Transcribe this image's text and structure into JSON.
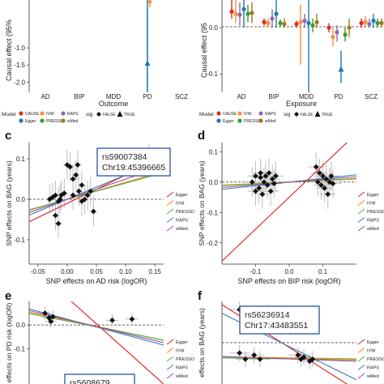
{
  "chart_data": [
    {
      "panel": "a",
      "type": "scatter",
      "ylabel": "Causal effect (95%",
      "xlabel": "Outcome",
      "categories": [
        "AD",
        "BIP",
        "MDD",
        "PD",
        "SCZ"
      ],
      "y_ticks": [
        "-1.0",
        "-1.5",
        "-2.0"
      ],
      "ylim": [
        -2.3,
        0.4
      ],
      "legend": {
        "model_title": "Model",
        "models": [
          "CAUSE",
          "IVW",
          "RAPS",
          "Egger",
          "PRESSO",
          "wMed"
        ],
        "sig_title": "sig",
        "sig_values": [
          "FALSE",
          "TRUE"
        ]
      },
      "points": [
        {
          "category": "PD",
          "model": "Egger",
          "y": -1.45,
          "lo": -2.3,
          "hi": 0.4,
          "sig": "TRUE"
        },
        {
          "category": "PD",
          "model": "IVW",
          "y": 0.35,
          "lo": 0.2,
          "hi": 0.4,
          "sig": "FALSE"
        }
      ]
    },
    {
      "panel": "b",
      "type": "scatter",
      "ylabel": "Causal effect (95",
      "xlabel": "Exposure",
      "categories": [
        "AD",
        "BIP",
        "MDD",
        "PD",
        "SCZ"
      ],
      "y_ticks": [
        "0.0",
        "-0.1"
      ],
      "ylim": [
        -0.14,
        0.06
      ],
      "legend": {
        "model_title": "Model",
        "models": [
          "CAUSE",
          "IVW",
          "RAPS",
          "Egger",
          "PRESSO",
          "wMed"
        ],
        "sig_title": "sig",
        "sig_values": [
          "FALSE",
          "TRUE"
        ]
      }
    },
    {
      "panel": "c",
      "type": "scatter",
      "xlabel": "SNP effects on AD risk (logOR)",
      "ylabel": "SNP effects on BAG (years)",
      "x_ticks": [
        "-0.05",
        "0.00",
        "0.05",
        "0.10",
        "0.15"
      ],
      "y_ticks": [
        "0.1",
        "0.0",
        "-0.1"
      ],
      "xlim": [
        -0.065,
        0.165
      ],
      "ylim": [
        -0.16,
        0.14
      ],
      "annotation": [
        "rs59007384",
        "Chr19:45396665"
      ],
      "legend": [
        "Egger",
        "IVW",
        "PRESSO",
        "RAPS",
        "wMed"
      ],
      "points": [
        {
          "x": -0.03,
          "y": 0.0
        },
        {
          "x": -0.025,
          "y": 0.005
        },
        {
          "x": -0.02,
          "y": 0.01
        },
        {
          "x": -0.015,
          "y": -0.005
        },
        {
          "x": -0.02,
          "y": -0.04
        },
        {
          "x": -0.015,
          "y": -0.06
        },
        {
          "x": -0.01,
          "y": 0.01
        },
        {
          "x": -0.005,
          "y": 0.015
        },
        {
          "x": 0.0,
          "y": 0.085
        },
        {
          "x": 0.005,
          "y": 0.08
        },
        {
          "x": 0.01,
          "y": 0.05
        },
        {
          "x": 0.01,
          "y": 0.01
        },
        {
          "x": 0.015,
          "y": 0.06
        },
        {
          "x": 0.018,
          "y": 0.085
        },
        {
          "x": 0.02,
          "y": 0.02
        },
        {
          "x": 0.025,
          "y": 0.035
        },
        {
          "x": 0.025,
          "y": -0.005
        },
        {
          "x": 0.03,
          "y": 0.0
        },
        {
          "x": 0.04,
          "y": 0.02
        },
        {
          "x": 0.045,
          "y": -0.03
        },
        {
          "x": -0.012,
          "y": 0.0
        },
        {
          "x": 0.035,
          "y": 0.01
        },
        {
          "x": 0.14,
          "y": 0.1
        }
      ],
      "fits": [
        {
          "name": "Egger",
          "color": "#e41a1c",
          "slope": 0.7,
          "intercept": -0.01
        },
        {
          "name": "IVW",
          "color": "#ff7f00",
          "slope": 0.42,
          "intercept": 0.0
        },
        {
          "name": "PRESSO",
          "color": "#4daf4a",
          "slope": 0.4,
          "intercept": 0.0
        },
        {
          "name": "RAPS",
          "color": "#377eb8",
          "slope": 0.6,
          "intercept": 0.0
        },
        {
          "name": "wMed",
          "color": "#984ea3",
          "slope": 0.5,
          "intercept": 0.0
        }
      ]
    },
    {
      "panel": "d",
      "type": "scatter",
      "xlabel": "SNP effects on BIP risk (logOR)",
      "ylabel": "SNP effects on BAG (years)",
      "x_ticks": [
        "-0.1",
        "0.0",
        "0.1"
      ],
      "y_ticks": [
        "0.1",
        "0.0",
        "-0.1",
        "-0.2"
      ],
      "xlim": [
        -0.2,
        0.2
      ],
      "ylim": [
        -0.27,
        0.13
      ],
      "legend": [
        "Egger",
        "IVW",
        "PRESSO",
        "RAPS",
        "wMed"
      ],
      "points": [
        {
          "x": -0.11,
          "y": 0.0
        },
        {
          "x": -0.1,
          "y": 0.02
        },
        {
          "x": -0.09,
          "y": -0.02
        },
        {
          "x": -0.085,
          "y": 0.03
        },
        {
          "x": -0.08,
          "y": -0.04
        },
        {
          "x": -0.075,
          "y": 0.0
        },
        {
          "x": -0.07,
          "y": 0.02
        },
        {
          "x": -0.065,
          "y": -0.01
        },
        {
          "x": -0.06,
          "y": 0.03
        },
        {
          "x": -0.055,
          "y": -0.03
        },
        {
          "x": -0.05,
          "y": 0.01
        },
        {
          "x": -0.045,
          "y": -0.005
        },
        {
          "x": -0.04,
          "y": 0.02
        },
        {
          "x": -0.1,
          "y": -0.03
        },
        {
          "x": -0.085,
          "y": 0.015
        },
        {
          "x": 0.08,
          "y": 0.05
        },
        {
          "x": 0.085,
          "y": 0.0
        },
        {
          "x": 0.09,
          "y": 0.03
        },
        {
          "x": 0.095,
          "y": -0.01
        },
        {
          "x": 0.1,
          "y": 0.02
        },
        {
          "x": 0.105,
          "y": -0.02
        },
        {
          "x": 0.11,
          "y": 0.01
        },
        {
          "x": 0.115,
          "y": -0.04
        },
        {
          "x": 0.12,
          "y": 0.0
        },
        {
          "x": 0.125,
          "y": 0.02
        },
        {
          "x": 0.13,
          "y": -0.005
        }
      ],
      "fits": [
        {
          "name": "Egger",
          "color": "#e41a1c",
          "slope": 1.05,
          "intercept": -0.05
        },
        {
          "name": "IVW",
          "color": "#ff7f00",
          "slope": 0.05,
          "intercept": 0.0
        },
        {
          "name": "PRESSO",
          "color": "#4daf4a",
          "slope": 0.06,
          "intercept": 0.0
        },
        {
          "name": "RAPS",
          "color": "#377eb8",
          "slope": 0.12,
          "intercept": 0.0
        },
        {
          "name": "wMed",
          "color": "#984ea3",
          "slope": 0.09,
          "intercept": 0.0
        }
      ]
    },
    {
      "panel": "e",
      "type": "scatter",
      "ylabel": "effects on PD risk (logOR)",
      "y_ticks": [
        "0.0",
        "-0.1"
      ],
      "ylim": [
        -0.25,
        0.1
      ],
      "xlim": [
        -0.04,
        0.3
      ],
      "annotation": [
        "rs5608679"
      ],
      "legend": [
        "Egger",
        "IVW",
        "PRESSO",
        "RAPS",
        "wMed"
      ],
      "points": [
        {
          "x": 0.0,
          "y": 0.05
        },
        {
          "x": 0.01,
          "y": 0.03
        },
        {
          "x": 0.02,
          "y": 0.035
        },
        {
          "x": 0.015,
          "y": 0.015
        },
        {
          "x": 0.17,
          "y": 0.02
        },
        {
          "x": 0.22,
          "y": 0.025
        }
      ],
      "fits": [
        {
          "name": "Egger",
          "color": "#e41a1c",
          "slope": -1.5,
          "intercept": 0.2
        },
        {
          "name": "IVW",
          "color": "#ff7f00",
          "slope": -0.35,
          "intercept": 0.04
        },
        {
          "name": "PRESSO",
          "color": "#4daf4a",
          "slope": -0.33,
          "intercept": 0.035
        },
        {
          "name": "RAPS",
          "color": "#377eb8",
          "slope": -0.45,
          "intercept": 0.05
        },
        {
          "name": "wMed",
          "color": "#984ea3",
          "slope": -0.4,
          "intercept": 0.045
        }
      ]
    },
    {
      "panel": "f",
      "type": "scatter",
      "ylabel": "effects on BAG (years)",
      "xlim": [
        -0.06,
        0.4
      ],
      "ylim": [
        -0.2,
        0.2
      ],
      "annotation": [
        "rs56236914",
        "Chr17:43483551"
      ],
      "legend": [
        "Egger",
        "IVW",
        "PRESSO",
        "RAPS",
        "wMed"
      ],
      "points": [
        {
          "x": 0.0,
          "y": 0.16
        },
        {
          "x": 0.0,
          "y": -0.05
        },
        {
          "x": 0.02,
          "y": -0.08
        },
        {
          "x": 0.05,
          "y": -0.06
        },
        {
          "x": 0.07,
          "y": -0.08
        },
        {
          "x": 0.2,
          "y": -0.06
        },
        {
          "x": 0.21,
          "y": -0.08
        },
        {
          "x": 0.22,
          "y": -0.07
        },
        {
          "x": 0.24,
          "y": -0.09
        },
        {
          "x": 0.25,
          "y": -0.08
        }
      ],
      "fits": [
        {
          "name": "Egger",
          "color": "#e41a1c",
          "slope": -0.9,
          "intercept": 0.13
        },
        {
          "name": "IVW",
          "color": "#ff7f00",
          "slope": -0.02,
          "intercept": -0.07
        },
        {
          "name": "PRESSO",
          "color": "#4daf4a",
          "slope": -0.02,
          "intercept": -0.075
        },
        {
          "name": "RAPS",
          "color": "#377eb8",
          "slope": -0.7,
          "intercept": 0.1
        },
        {
          "name": "wMed",
          "color": "#984ea3",
          "slope": -0.05,
          "intercept": -0.07
        }
      ]
    }
  ],
  "panel_labels": [
    "c",
    "d",
    "e",
    "f"
  ],
  "model_colors": {
    "CAUSE": "#d7301f",
    "IVW": "#fd8d3c",
    "RAPS": "#8c6bb1",
    "Egger": "#1f78b4",
    "PRESSO": "#33a02c",
    "wMed": "#a6761d"
  }
}
